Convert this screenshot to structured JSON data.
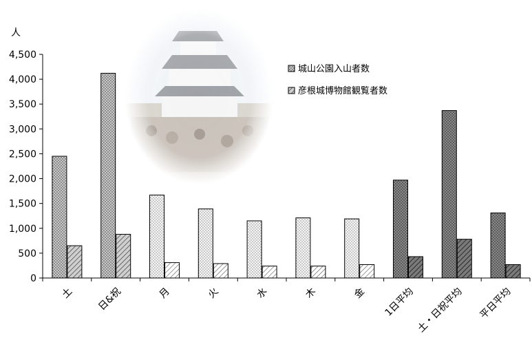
{
  "chart_data": {
    "type": "bar",
    "title": "",
    "y_unit_label": "人",
    "xlabel": "",
    "ylabel": "",
    "ylim": [
      0,
      4500
    ],
    "y_ticks": [
      0,
      500,
      1000,
      1500,
      2000,
      2500,
      3000,
      3500,
      4000,
      4500
    ],
    "y_tick_labels": [
      "0",
      "500",
      "1,000",
      "1,500",
      "2,000",
      "2,500",
      "3,000",
      "3,500",
      "4,000",
      "4,500"
    ],
    "grid": false,
    "legend_position": "top-right",
    "categories": [
      "土",
      "日&祝",
      "月",
      "火",
      "水",
      "木",
      "金",
      "1日平均",
      "土・日祝平均",
      "平日平均"
    ],
    "category_group": [
      "weekend",
      "weekend",
      "weekday",
      "weekday",
      "weekday",
      "weekday",
      "weekday",
      "average",
      "average",
      "average"
    ],
    "series": [
      {
        "name": "城山公園入山者数",
        "pattern": "dots",
        "values": [
          2450,
          4120,
          1670,
          1390,
          1150,
          1210,
          1190,
          1970,
          3370,
          1310
        ]
      },
      {
        "name": "彦根城博物館観覧者数",
        "pattern": "hatch",
        "values": [
          650,
          880,
          310,
          290,
          240,
          240,
          270,
          430,
          780,
          270
        ]
      }
    ],
    "background_image": "castle-photo-vignette"
  }
}
